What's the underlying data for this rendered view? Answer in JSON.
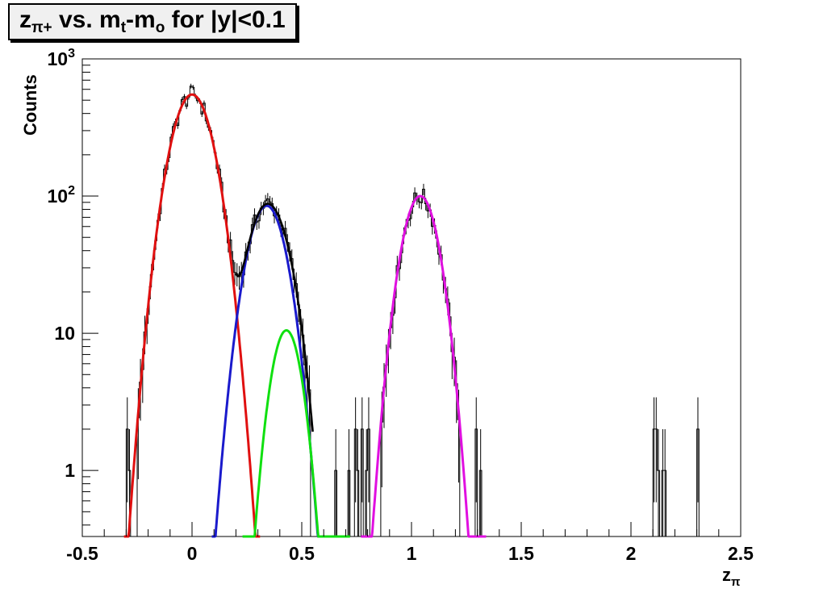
{
  "chart_data": {
    "type": "line",
    "title": {
      "base": "z",
      "base_sub": "π+",
      "mid": " vs. m",
      "mid_sub": "t",
      "dash": "-m",
      "dash_sub": "o",
      "tail": " for |y|<0.1"
    },
    "xlabel": "z",
    "xlabel_sub": "π",
    "ylabel": "Counts",
    "xlim": [
      -0.5,
      2.5
    ],
    "ylim": [
      0.33,
      1000
    ],
    "yscale": "log",
    "grid": false,
    "x_ticks": [
      -0.5,
      0,
      0.5,
      1,
      1.5,
      2,
      2.5
    ],
    "x_tick_labels": [
      "-0.5",
      "0",
      "0.5",
      "1",
      "1.5",
      "2",
      "2.5"
    ],
    "y_tick_labels": [
      {
        "value": 1,
        "label": "1"
      },
      {
        "value": 10,
        "label": "10"
      },
      {
        "value": 100,
        "base": "10",
        "exp": "2"
      },
      {
        "value": 1000,
        "base": "10",
        "exp": "3"
      }
    ],
    "series": [
      {
        "kind": "gauss",
        "color": "#e01010",
        "amplitude": 550,
        "mean": 0.0,
        "sigma": 0.075,
        "range": [
          -0.31,
          0.31
        ]
      },
      {
        "kind": "gauss",
        "color": "#1a1acc",
        "amplitude": 85,
        "mean": 0.34,
        "sigma": 0.07,
        "range": [
          0.09,
          0.62
        ]
      },
      {
        "kind": "gauss",
        "color": "#10e010",
        "amplitude": 10.5,
        "mean": 0.43,
        "sigma": 0.055,
        "range": [
          0.23,
          0.72
        ]
      },
      {
        "kind": "gauss",
        "color": "#e010e0",
        "amplitude": 100,
        "mean": 1.04,
        "sigma": 0.065,
        "range": [
          0.77,
          1.34
        ]
      },
      {
        "kind": "sum",
        "color": "#000000",
        "components": [
          0,
          1,
          2
        ],
        "range": [
          0.2,
          0.55
        ]
      }
    ],
    "histogram": {
      "bin_width": 0.01,
      "color": "#000000",
      "isolated_counts": [
        {
          "x": -0.3,
          "count": 2
        },
        {
          "x": -0.29,
          "count": 1
        },
        {
          "x": 0.65,
          "count": 1
        },
        {
          "x": 0.71,
          "count": 1
        },
        {
          "x": 0.74,
          "count": 2
        },
        {
          "x": 0.75,
          "count": 1
        },
        {
          "x": 0.77,
          "count": 2
        },
        {
          "x": 0.79,
          "count": 1
        },
        {
          "x": 0.8,
          "count": 2
        },
        {
          "x": 1.29,
          "count": 2
        },
        {
          "x": 1.31,
          "count": 1
        },
        {
          "x": 2.1,
          "count": 2
        },
        {
          "x": 2.11,
          "count": 2
        },
        {
          "x": 2.12,
          "count": 1
        },
        {
          "x": 2.14,
          "count": 1
        },
        {
          "x": 2.15,
          "count": 1
        },
        {
          "x": 2.3,
          "count": 2
        }
      ]
    }
  }
}
